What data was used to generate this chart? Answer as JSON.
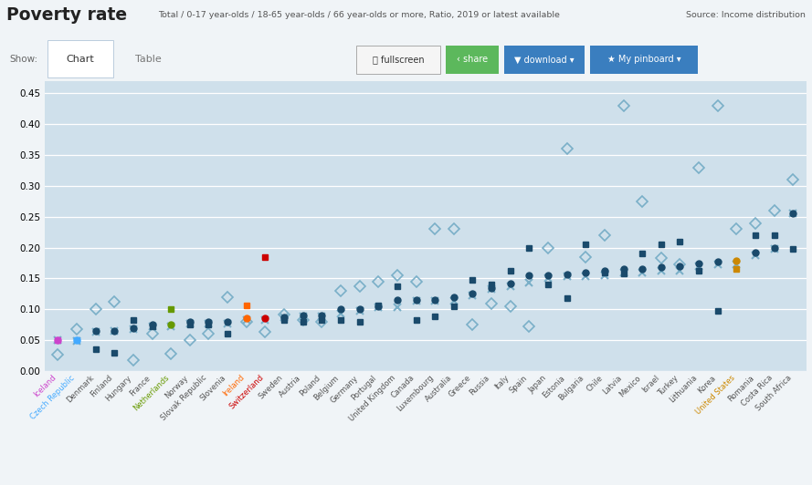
{
  "title": "Poverty rate",
  "subtitle": "Total / 0-17 year-olds / 18-65 year-olds / 66 year-olds or more, Ratio, 2019 or latest available",
  "source": "Source: Income distribution",
  "background_color": "#cfe0eb",
  "ylim": [
    0.0,
    0.47
  ],
  "yticks": [
    0.0,
    0.05,
    0.1,
    0.15,
    0.2,
    0.25,
    0.3,
    0.35,
    0.4,
    0.45
  ],
  "countries": [
    "Iceland",
    "Czech Republic",
    "Denmark",
    "Finland",
    "Hungary",
    "France",
    "Netherlands",
    "Norway",
    "Slovak Republic",
    "Slovenia",
    "Ireland",
    "Switzerland",
    "Sweden",
    "Austria",
    "Poland",
    "Belgium",
    "Germany",
    "Portugal",
    "United Kingdom",
    "Canada",
    "Luxembourg",
    "Australia",
    "Greece",
    "Russia",
    "Italy",
    "Spain",
    "Japan",
    "Estonia",
    "Bulgaria",
    "Chile",
    "Latvia",
    "Mexico",
    "Israel",
    "Turkey",
    "Lithuania",
    "Korea",
    "United States",
    "Romania",
    "Costa Rica",
    "South Africa"
  ],
  "special_colors": {
    "Iceland": "#cc44cc",
    "Czech Republic": "#44aaff",
    "Netherlands": "#669900",
    "Ireland": "#ff6600",
    "Switzerland": "#cc0000",
    "United States": "#cc8800"
  },
  "data": {
    "Iceland": {
      "total": 0.05,
      "children": 0.05,
      "working_age": 0.05,
      "elderly": 0.027
    },
    "Czech Republic": {
      "total": 0.05,
      "children": 0.05,
      "working_age": 0.048,
      "elderly": 0.068
    },
    "Denmark": {
      "total": 0.065,
      "children": 0.035,
      "working_age": 0.063,
      "elderly": 0.1
    },
    "Finland": {
      "total": 0.065,
      "children": 0.03,
      "working_age": 0.065,
      "elderly": 0.112
    },
    "Hungary": {
      "total": 0.07,
      "children": 0.082,
      "working_age": 0.068,
      "elderly": 0.018
    },
    "France": {
      "total": 0.075,
      "children": 0.073,
      "working_age": 0.073,
      "elderly": 0.06
    },
    "Netherlands": {
      "total": 0.075,
      "children": 0.1,
      "working_age": 0.072,
      "elderly": 0.028
    },
    "Norway": {
      "total": 0.08,
      "children": 0.075,
      "working_age": 0.077,
      "elderly": 0.05
    },
    "Slovak Republic": {
      "total": 0.08,
      "children": 0.075,
      "working_age": 0.077,
      "elderly": 0.06
    },
    "Slovenia": {
      "total": 0.08,
      "children": 0.06,
      "working_age": 0.077,
      "elderly": 0.12
    },
    "Ireland": {
      "total": 0.085,
      "children": 0.107,
      "working_age": 0.082,
      "elderly": 0.08
    },
    "Switzerland": {
      "total": 0.085,
      "children": 0.185,
      "working_age": 0.082,
      "elderly": 0.063
    },
    "Sweden": {
      "total": 0.087,
      "children": 0.082,
      "working_age": 0.087,
      "elderly": 0.092
    },
    "Austria": {
      "total": 0.09,
      "children": 0.08,
      "working_age": 0.088,
      "elderly": 0.083
    },
    "Poland": {
      "total": 0.09,
      "children": 0.083,
      "working_age": 0.088,
      "elderly": 0.08
    },
    "Belgium": {
      "total": 0.1,
      "children": 0.083,
      "working_age": 0.093,
      "elderly": 0.13
    },
    "Germany": {
      "total": 0.1,
      "children": 0.08,
      "working_age": 0.097,
      "elderly": 0.138
    },
    "Portugal": {
      "total": 0.105,
      "children": 0.107,
      "working_age": 0.103,
      "elderly": 0.145
    },
    "United Kingdom": {
      "total": 0.115,
      "children": 0.138,
      "working_age": 0.103,
      "elderly": 0.155
    },
    "Canada": {
      "total": 0.115,
      "children": 0.082,
      "working_age": 0.113,
      "elderly": 0.145
    },
    "Luxembourg": {
      "total": 0.115,
      "children": 0.088,
      "working_age": 0.113,
      "elderly": 0.23
    },
    "Australia": {
      "total": 0.12,
      "children": 0.105,
      "working_age": 0.113,
      "elderly": 0.23
    },
    "Greece": {
      "total": 0.125,
      "children": 0.148,
      "working_age": 0.123,
      "elderly": 0.075
    },
    "Russia": {
      "total": 0.135,
      "children": 0.14,
      "working_age": 0.133,
      "elderly": 0.11
    },
    "Italy": {
      "total": 0.142,
      "children": 0.163,
      "working_age": 0.138,
      "elderly": 0.105
    },
    "Spain": {
      "total": 0.155,
      "children": 0.2,
      "working_age": 0.143,
      "elderly": 0.072
    },
    "Japan": {
      "total": 0.155,
      "children": 0.14,
      "working_age": 0.15,
      "elderly": 0.2
    },
    "Estonia": {
      "total": 0.157,
      "children": 0.118,
      "working_age": 0.153,
      "elderly": 0.36
    },
    "Bulgaria": {
      "total": 0.16,
      "children": 0.205,
      "working_age": 0.153,
      "elderly": 0.185
    },
    "Chile": {
      "total": 0.162,
      "children": 0.16,
      "working_age": 0.155,
      "elderly": 0.22
    },
    "Latvia": {
      "total": 0.165,
      "children": 0.158,
      "working_age": 0.16,
      "elderly": 0.43
    },
    "Mexico": {
      "total": 0.165,
      "children": 0.19,
      "working_age": 0.16,
      "elderly": 0.275
    },
    "Israel": {
      "total": 0.168,
      "children": 0.205,
      "working_age": 0.163,
      "elderly": 0.183
    },
    "Turkey": {
      "total": 0.17,
      "children": 0.21,
      "working_age": 0.163,
      "elderly": 0.173
    },
    "Lithuania": {
      "total": 0.175,
      "children": 0.163,
      "working_age": 0.17,
      "elderly": 0.33
    },
    "Korea": {
      "total": 0.177,
      "children": 0.098,
      "working_age": 0.173,
      "elderly": 0.43
    },
    "United States": {
      "total": 0.178,
      "children": 0.165,
      "working_age": 0.173,
      "elderly": 0.23
    },
    "Romania": {
      "total": 0.192,
      "children": 0.22,
      "working_age": 0.188,
      "elderly": 0.24
    },
    "Costa Rica": {
      "total": 0.2,
      "children": 0.22,
      "working_age": 0.198,
      "elderly": 0.26
    },
    "South Africa": {
      "total": 0.255,
      "children": 0.198,
      "working_age": 0.255,
      "elderly": 0.31
    }
  },
  "dot_color": "#1a4a6b",
  "diamond_color": "#7aafc8",
  "x_color": "#7aafc8",
  "fig_bg": "#f0f4f7",
  "header_bg": "#ffffff",
  "tab_bg": "#e4ecf0"
}
